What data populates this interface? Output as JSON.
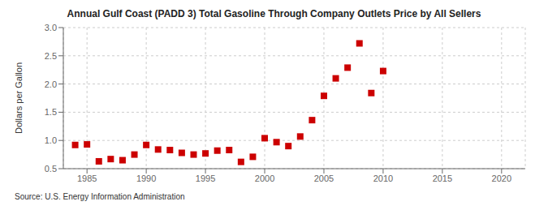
{
  "chart_data": {
    "type": "scatter",
    "title": "Annual Gulf Coast (PADD 3) Total Gasoline Through Company Outlets Price by All Sellers",
    "ylabel": "Dollars per Gallon",
    "annotations": [
      "Source: U.S. Energy Information Administration"
    ],
    "color": "#cc0000",
    "marker": "square",
    "grid": true,
    "xlim": [
      1983,
      2022
    ],
    "ylim": [
      0.5,
      3.0
    ],
    "xticks": [
      1985,
      1990,
      1995,
      2000,
      2005,
      2010,
      2015,
      2020
    ],
    "yticks": [
      0.5,
      {
        "value": 1.0,
        "label": "1.0"
      },
      1.5,
      {
        "value": 2.0,
        "label": "2.0"
      },
      2.5,
      {
        "value": 3.0,
        "label": "3.0"
      }
    ],
    "x": [
      1984,
      1985,
      1986,
      1987,
      1988,
      1989,
      1990,
      1991,
      1992,
      1993,
      1994,
      1995,
      1996,
      1997,
      1998,
      1999,
      2000,
      2001,
      2002,
      2003,
      2004,
      2005,
      2006,
      2007,
      2008,
      2009,
      2010
    ],
    "values": [
      0.92,
      0.93,
      0.63,
      0.67,
      0.65,
      0.75,
      0.92,
      0.84,
      0.83,
      0.78,
      0.75,
      0.77,
      0.82,
      0.83,
      0.62,
      0.71,
      1.04,
      0.97,
      0.9,
      1.07,
      1.36,
      1.79,
      2.1,
      2.29,
      2.72,
      1.84,
      2.23
    ]
  }
}
